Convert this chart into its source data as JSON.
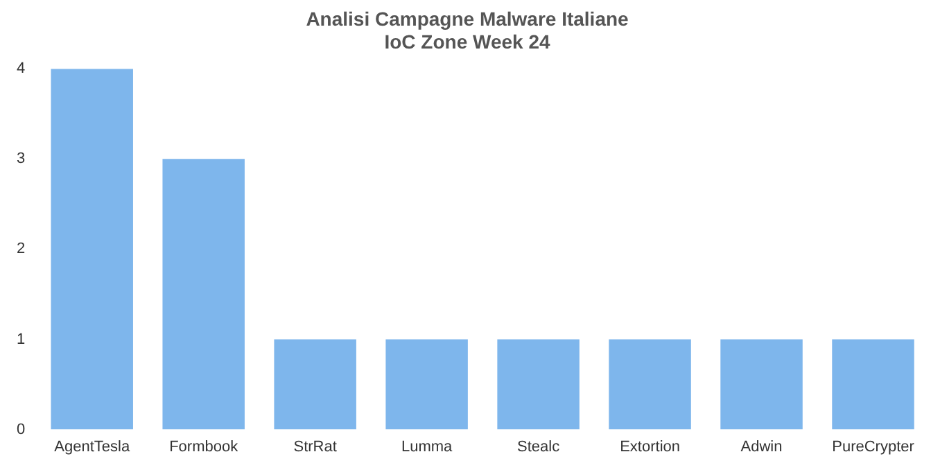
{
  "chart_data": {
    "type": "bar",
    "title": [
      "Analisi Campagne Malware Italiane",
      "IoC Zone Week 24"
    ],
    "categories": [
      "AgentTesla",
      "Formbook",
      "StrRat",
      "Lumma",
      "Stealc",
      "Extortion",
      "Adwin",
      "PureCrypter"
    ],
    "values": [
      4,
      3,
      1,
      1,
      1,
      1,
      1,
      1
    ],
    "color": "#7eb6ec",
    "ylim": [
      0,
      4
    ],
    "yticks": [
      0,
      1,
      2,
      3,
      4
    ],
    "grid": false,
    "legend": false
  }
}
